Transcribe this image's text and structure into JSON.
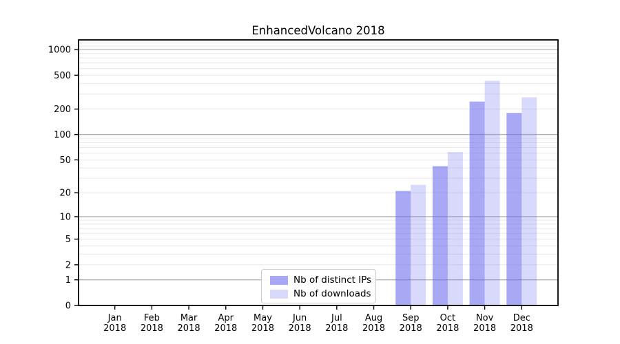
{
  "figure": {
    "background": "#ffffff",
    "axes_box_color": "#000000"
  },
  "chart_data": {
    "type": "bar",
    "title": "EnhancedVolcano 2018",
    "categories": [
      "Jan",
      "Feb",
      "Mar",
      "Apr",
      "May",
      "Jun",
      "Jul",
      "Aug",
      "Sep",
      "Oct",
      "Nov",
      "Dec"
    ],
    "x_tick_year_line": "2018",
    "series": [
      {
        "name": "Nb of distinct IPs",
        "values": [
          0,
          0,
          0,
          0,
          0,
          0,
          0,
          0,
          21,
          42,
          245,
          180
        ],
        "fill": "rgba(102,102,238,0.57)",
        "legend_swatch": "#a8a8f4"
      },
      {
        "name": "Nb of downloads",
        "values": [
          0,
          0,
          0,
          0,
          0,
          0,
          0,
          0,
          25,
          62,
          430,
          275
        ],
        "fill": "rgba(102,102,238,0.25)",
        "legend_swatch": "#d9d9f9"
      }
    ],
    "xlabel": "",
    "ylabel": "",
    "y_scale": "log1p",
    "y_ticks": [
      0,
      1,
      2,
      5,
      10,
      20,
      50,
      100,
      200,
      500,
      1000
    ],
    "ylim": [
      0,
      1300
    ],
    "grid": "on",
    "grid_major_color": "#b3b3b3",
    "grid_minor_color": "#e7e7e7",
    "legend_position": "lower center"
  }
}
